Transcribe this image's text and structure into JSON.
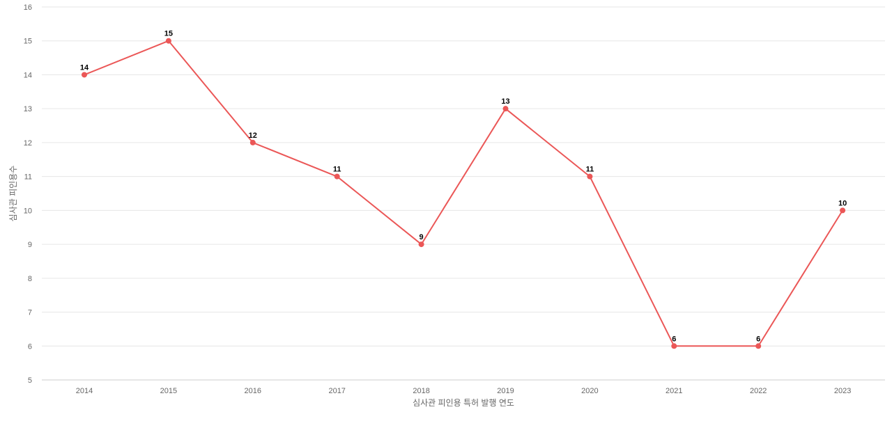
{
  "chart_data": {
    "type": "line",
    "title": "",
    "xlabel": "심사관 피인용 특허 발행 연도",
    "ylabel": "심사관 피인용수",
    "categories": [
      "2014",
      "2015",
      "2016",
      "2017",
      "2018",
      "2019",
      "2020",
      "2021",
      "2022",
      "2023"
    ],
    "series": [
      {
        "values": [
          14,
          15,
          12,
          11,
          9,
          13,
          11,
          6,
          6,
          10
        ],
        "color": "#eb5757"
      }
    ],
    "ylim": [
      5,
      16
    ],
    "yticks": [
      5,
      6,
      7,
      8,
      9,
      10,
      11,
      12,
      13,
      14,
      15,
      16
    ],
    "grid": true,
    "legend": "none",
    "data_labels": true
  }
}
